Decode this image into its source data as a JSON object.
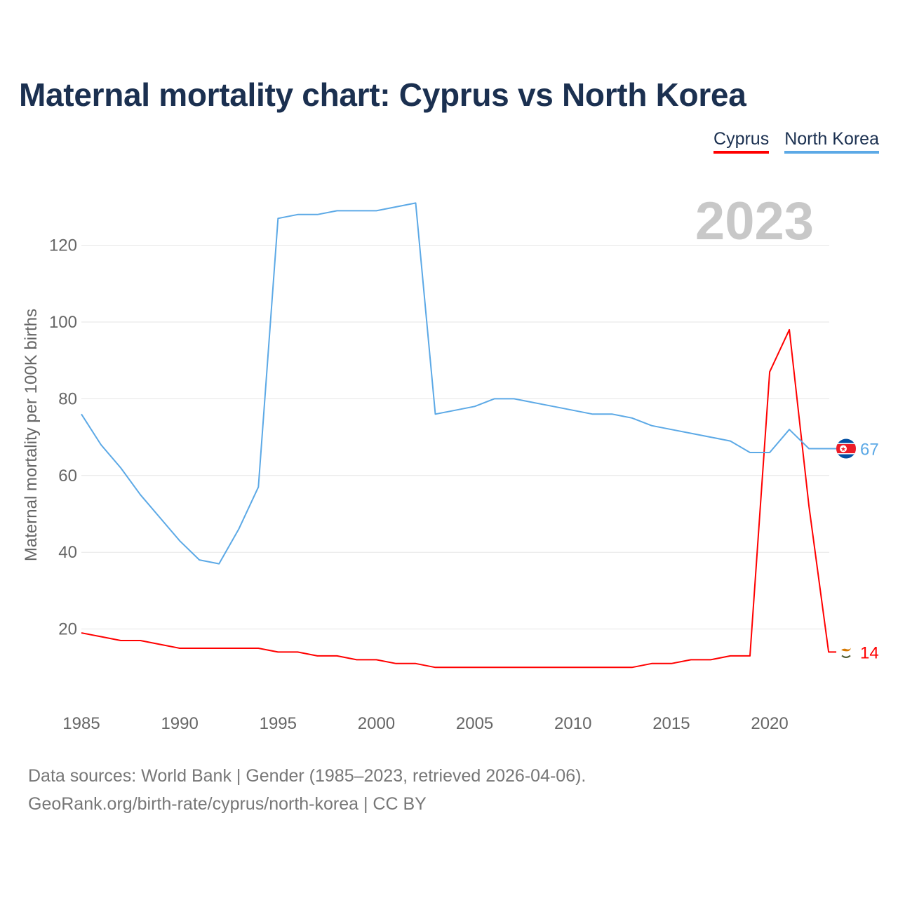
{
  "title": "Maternal mortality chart: Cyprus vs North Korea",
  "legend": [
    {
      "name": "Cyprus",
      "color": "#ff0000"
    },
    {
      "name": "North Korea",
      "color": "#5ca9e6"
    }
  ],
  "footer": {
    "line1": "Data sources: World Bank | Gender (1985–2023, retrieved 2026-04-06).",
    "line2": "GeoRank.org/birth-rate/cyprus/north-korea | CC BY"
  },
  "chart_data": {
    "type": "line",
    "title": "Maternal mortality chart: Cyprus vs North Korea",
    "xlabel": "",
    "ylabel": "Maternal mortality per 100K births",
    "year_watermark": "2023",
    "xlim": [
      1985,
      2023
    ],
    "ylim": [
      0,
      133
    ],
    "x_ticks": [
      1985,
      1990,
      1995,
      2000,
      2005,
      2010,
      2015,
      2020
    ],
    "y_ticks": [
      20,
      40,
      60,
      80,
      100,
      120
    ],
    "grid": true,
    "legend_position": "top-right",
    "x": [
      1985,
      1986,
      1987,
      1988,
      1989,
      1990,
      1991,
      1992,
      1993,
      1994,
      1995,
      1996,
      1997,
      1998,
      1999,
      2000,
      2001,
      2002,
      2003,
      2004,
      2005,
      2006,
      2007,
      2008,
      2009,
      2010,
      2011,
      2012,
      2013,
      2014,
      2015,
      2016,
      2017,
      2018,
      2019,
      2020,
      2021,
      2022,
      2023
    ],
    "series": [
      {
        "name": "Cyprus",
        "color": "#ff0000",
        "end_label": "14",
        "values": [
          19,
          18,
          17,
          17,
          16,
          15,
          15,
          15,
          15,
          15,
          14,
          14,
          13,
          13,
          12,
          12,
          11,
          11,
          10,
          10,
          10,
          10,
          10,
          10,
          10,
          10,
          10,
          10,
          10,
          11,
          11,
          12,
          12,
          13,
          13,
          87,
          98,
          52,
          14
        ]
      },
      {
        "name": "North Korea",
        "color": "#5ca9e6",
        "end_label": "67",
        "values": [
          76,
          68,
          62,
          55,
          49,
          43,
          38,
          37,
          46,
          57,
          127,
          128,
          128,
          129,
          129,
          129,
          130,
          131,
          76,
          77,
          78,
          80,
          80,
          79,
          78,
          77,
          76,
          76,
          75,
          73,
          72,
          71,
          70,
          69,
          66,
          66,
          72,
          67,
          67
        ]
      }
    ]
  }
}
